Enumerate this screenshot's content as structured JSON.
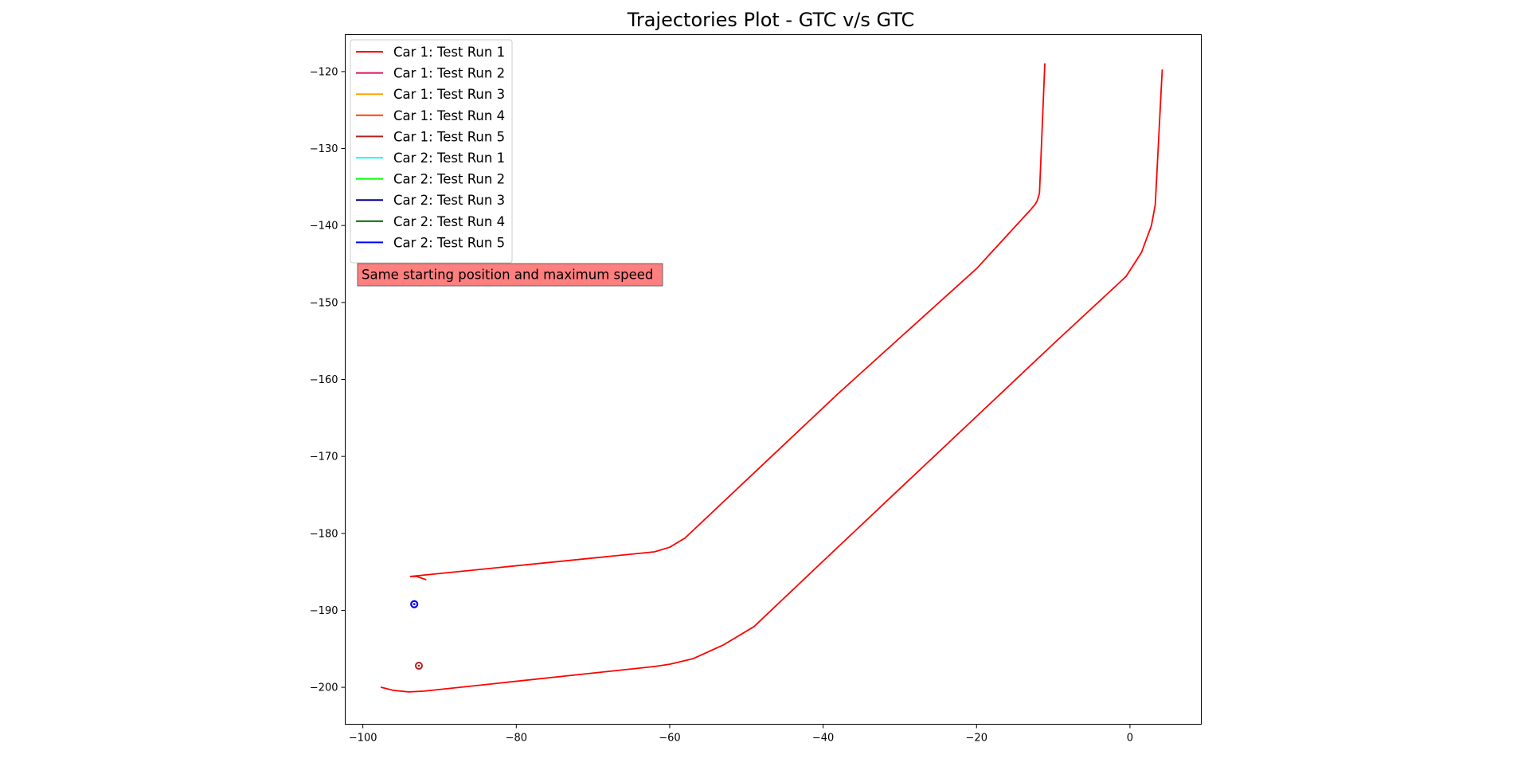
{
  "chart_data": {
    "type": "line",
    "title": "Trajectories Plot - GTC v/s GTC",
    "xlabel": "",
    "ylabel": "",
    "xlim": [
      -102.3,
      9.3
    ],
    "ylim": [
      -204.8,
      -115.2
    ],
    "x_ticks": [
      -100,
      -80,
      -60,
      -40,
      -20,
      0
    ],
    "y_ticks": [
      -120,
      -130,
      -140,
      -150,
      -160,
      -170,
      -180,
      -190,
      -200
    ],
    "x_tick_labels": [
      "−100",
      "−80",
      "−60",
      "−40",
      "−20",
      "0"
    ],
    "y_tick_labels": [
      "−120",
      "−130",
      "−140",
      "−150",
      "−160",
      "−170",
      "−180",
      "−190",
      "−200"
    ],
    "grid": false,
    "legend_position": "top-left",
    "annotation": {
      "text": "Same starting position and maximum speed",
      "background": "#ff7f7f"
    },
    "series": [
      {
        "name": "Car 1: Test Run 1",
        "color": "#ff0000",
        "points": [
          [
            -91.8,
            -186.0
          ],
          [
            -93.0,
            -185.6
          ],
          [
            -93.8,
            -185.6
          ],
          [
            -62.0,
            -182.4
          ],
          [
            -60.0,
            -181.8
          ],
          [
            -58.0,
            -180.6
          ],
          [
            -48.0,
            -171.2
          ],
          [
            -38.0,
            -161.8
          ],
          [
            -28.0,
            -152.8
          ],
          [
            -20.0,
            -145.6
          ],
          [
            -13.0,
            -138.0
          ],
          [
            -12.4,
            -137.3
          ],
          [
            -12.1,
            -136.8
          ],
          [
            -11.8,
            -135.8
          ],
          [
            -11.1,
            -119.0
          ]
        ]
      },
      {
        "name": "Car 1: Test Run 2",
        "color": "#e0115f",
        "points": []
      },
      {
        "name": "Car 1: Test Run 3",
        "color": "#ffa500",
        "points": []
      },
      {
        "name": "Car 1: Test Run 4",
        "color": "#ff4500",
        "points": []
      },
      {
        "name": "Car 1: Test Run 5",
        "color": "#b22222",
        "points": [
          [
            -92.7,
            -197.2
          ]
        ]
      },
      {
        "name": "Car 2: Test Run 1",
        "color": "#00ffff",
        "points": []
      },
      {
        "name": "Car 2: Test Run 2",
        "color": "#00ff00",
        "points": []
      },
      {
        "name": "Car 2: Test Run 3",
        "color": "#00008b",
        "points": [
          [
            -93.3,
            -189.2
          ]
        ]
      },
      {
        "name": "Car 2: Test Run 4",
        "color": "#006400",
        "points": []
      },
      {
        "name": "Car 2: Test Run 5",
        "color": "#0000ff",
        "points": [
          [
            -93.3,
            -189.2
          ]
        ]
      },
      {
        "name": "",
        "color": "#ff0000",
        "points": [
          [
            -97.6,
            -200.0
          ],
          [
            -96.0,
            -200.4
          ],
          [
            -94.0,
            -200.6
          ],
          [
            -92.0,
            -200.5
          ],
          [
            -62.0,
            -197.3
          ],
          [
            -60.0,
            -197.0
          ],
          [
            -57.0,
            -196.3
          ],
          [
            -53.0,
            -194.5
          ],
          [
            -49.0,
            -192.1
          ],
          [
            -40.0,
            -183.6
          ],
          [
            -30.0,
            -174.2
          ],
          [
            -20.0,
            -164.8
          ],
          [
            -10.0,
            -155.4
          ],
          [
            -2.0,
            -148.0
          ],
          [
            -0.5,
            -146.6
          ],
          [
            1.5,
            -143.5
          ],
          [
            2.8,
            -140.0
          ],
          [
            3.3,
            -137.3
          ],
          [
            4.2,
            -119.8
          ]
        ]
      }
    ]
  }
}
